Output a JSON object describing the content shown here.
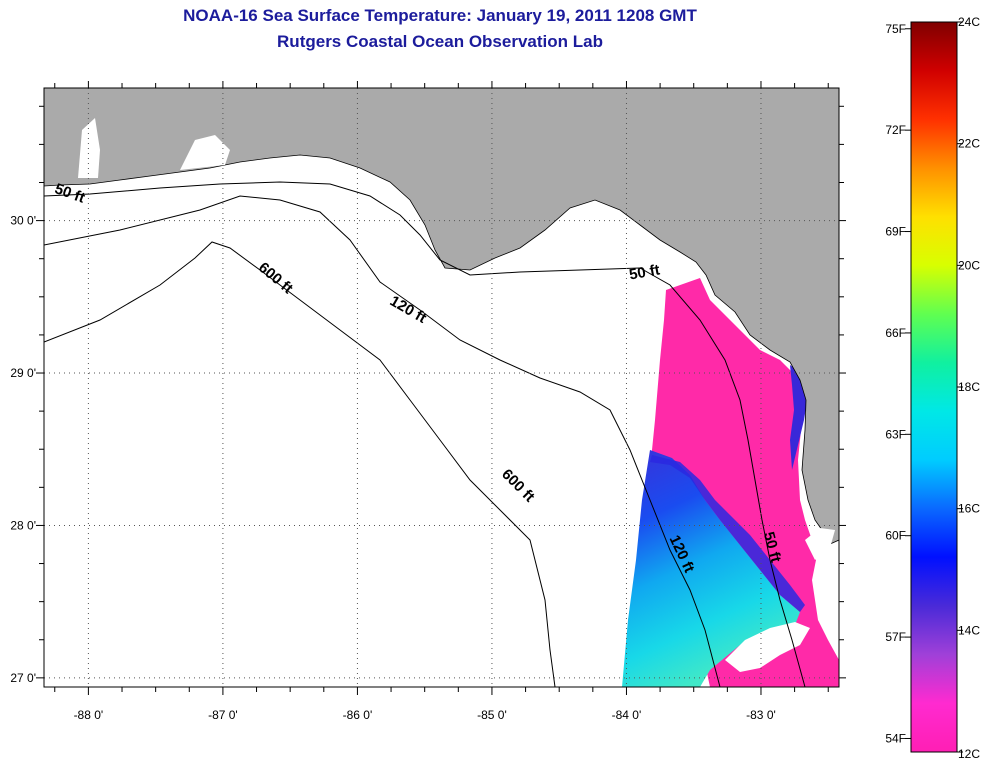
{
  "title": {
    "line1": "NOAA-16 Sea Surface Temperature:  January 19, 2011 1208 GMT",
    "line2": "Rutgers Coastal Ocean Observation Lab"
  },
  "map": {
    "lon_ticks": [
      "-88 0'",
      "-87 0'",
      "-86 0'",
      "-85 0'",
      "-84 0'",
      "-83 0'"
    ],
    "lat_ticks": [
      "30 0'",
      "29 0'",
      "28 0'",
      "27 0'"
    ],
    "lon_range": [
      -88.33,
      -82.42
    ],
    "lat_range": [
      26.94,
      30.87
    ],
    "land_color": "#aaaaaa",
    "ocean_nodata_color": "#ffffff",
    "contour_labels": [
      {
        "text": "50 ft",
        "lon": -88.15,
        "lat": 30.15
      },
      {
        "text": "600 ft",
        "lon": -86.63,
        "lat": 29.6
      },
      {
        "text": "120 ft",
        "lon": -85.64,
        "lat": 29.39
      },
      {
        "text": "50 ft",
        "lon": -83.86,
        "lat": 29.63
      },
      {
        "text": "600 ft",
        "lon": -84.83,
        "lat": 28.24
      },
      {
        "text": "120 ft",
        "lon": -83.62,
        "lat": 27.8
      },
      {
        "text": "50 ft",
        "lon": -82.95,
        "lat": 27.85
      }
    ]
  },
  "colorbar": {
    "min_c": 12,
    "max_c": 24,
    "f_labels": [
      "75F",
      "72F",
      "69F",
      "66F",
      "63F",
      "60F",
      "57F",
      "54F"
    ],
    "c_labels": [
      "24C",
      "22C",
      "20C",
      "18C",
      "16C",
      "14C",
      "12C"
    ],
    "colors_bottom_to_top": [
      "#ff1fb4",
      "#ff2ad0",
      "#a040d8",
      "#4a2ad8",
      "#0010ff",
      "#0a68ff",
      "#00ccff",
      "#00e8e6",
      "#10f0a0",
      "#60ff50",
      "#d8ff00",
      "#ffe000",
      "#ff9000",
      "#ff3000",
      "#d00000",
      "#800000"
    ]
  }
}
